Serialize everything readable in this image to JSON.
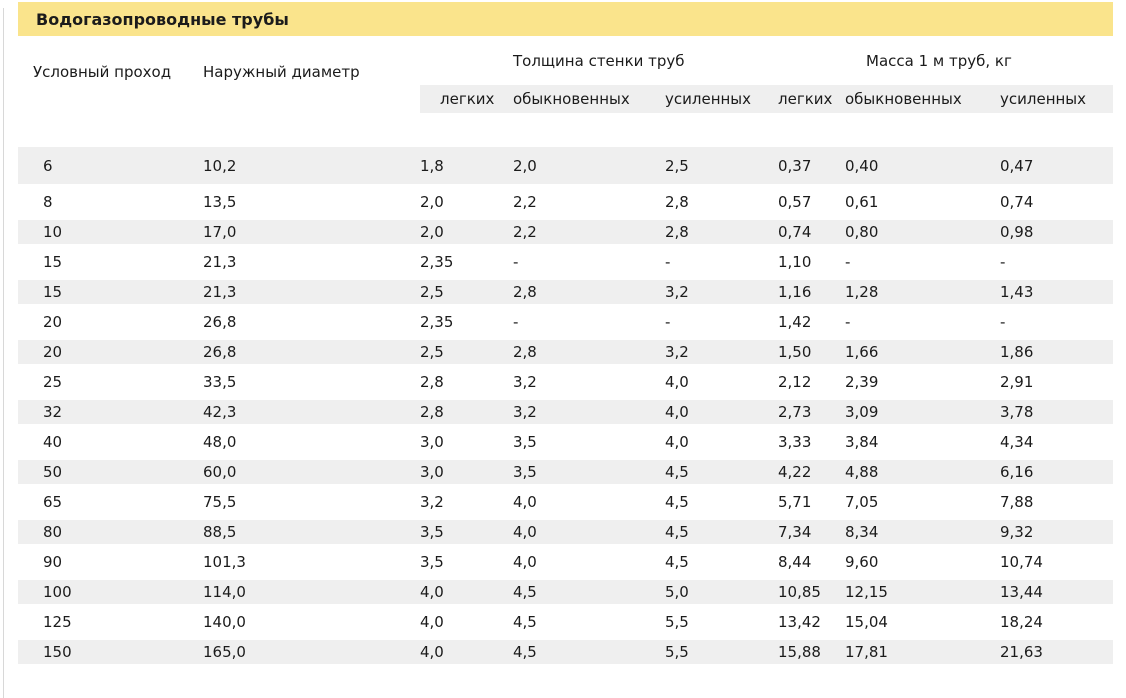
{
  "title": "Водогазопроводные трубы",
  "table": {
    "headers": {
      "nominal_bore": "Условный проход",
      "outer_diameter": "Наружный диаметр",
      "wall_thickness_group": "Толщина стенки труб",
      "mass_group": "Масса 1 м труб, кг",
      "sub": [
        "легких",
        "обыкновенных",
        "усиленных",
        "легких",
        "обыкновенных",
        "усиленных"
      ]
    },
    "rows": [
      [
        "6",
        "10,2",
        "1,8",
        "2,0",
        "2,5",
        "0,37",
        "0,40",
        "0,47"
      ],
      [
        "8",
        "13,5",
        "2,0",
        "2,2",
        "2,8",
        "0,57",
        "0,61",
        "0,74"
      ],
      [
        "10",
        "17,0",
        "2,0",
        "2,2",
        "2,8",
        "0,74",
        "0,80",
        "0,98"
      ],
      [
        "15",
        "21,3",
        "2,35",
        "-",
        "-",
        "1,10",
        "-",
        "-"
      ],
      [
        "15",
        "21,3",
        "2,5",
        "2,8",
        "3,2",
        "1,16",
        "1,28",
        "1,43"
      ],
      [
        "20",
        "26,8",
        "2,35",
        "-",
        "-",
        "1,42",
        "-",
        "-"
      ],
      [
        "20",
        "26,8",
        "2,5",
        "2,8",
        "3,2",
        "1,50",
        "1,66",
        "1,86"
      ],
      [
        "25",
        "33,5",
        "2,8",
        "3,2",
        "4,0",
        "2,12",
        "2,39",
        "2,91"
      ],
      [
        "32",
        "42,3",
        "2,8",
        "3,2",
        "4,0",
        "2,73",
        "3,09",
        "3,78"
      ],
      [
        "40",
        "48,0",
        "3,0",
        "3,5",
        "4,0",
        "3,33",
        "3,84",
        "4,34"
      ],
      [
        "50",
        "60,0",
        "3,0",
        "3,5",
        "4,5",
        "4,22",
        "4,88",
        "6,16"
      ],
      [
        "65",
        "75,5",
        "3,2",
        "4,0",
        "4,5",
        "5,71",
        "7,05",
        "7,88"
      ],
      [
        "80",
        "88,5",
        "3,5",
        "4,0",
        "4,5",
        "7,34",
        "8,34",
        "9,32"
      ],
      [
        "90",
        "101,3",
        "3,5",
        "4,0",
        "4,5",
        "8,44",
        "9,60",
        "10,74"
      ],
      [
        "100",
        "114,0",
        "4,0",
        "4,5",
        "5,0",
        "10,85",
        "12,15",
        "13,44"
      ],
      [
        "125",
        "140,0",
        "4,0",
        "4,5",
        "5,5",
        "13,42",
        "15,04",
        "18,24"
      ],
      [
        "150",
        "165,0",
        "4,0",
        "4,5",
        "5,5",
        "15,88",
        "17,81",
        "21,63"
      ]
    ]
  },
  "colors": {
    "title_bar_bg": "#FAE48C",
    "row_stripe": "#EFEFEF",
    "subheader_bg": "#EFEFEF"
  }
}
